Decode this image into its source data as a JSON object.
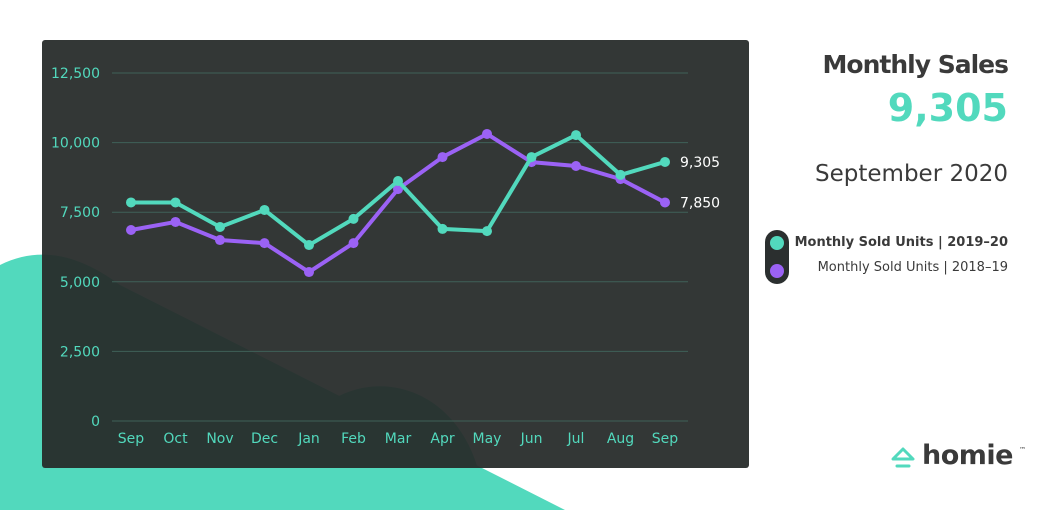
{
  "header": {
    "title": "Monthly Sales",
    "value": "9,305",
    "period": "September 2020"
  },
  "legend": [
    {
      "label": "Monthly Sold Units  |  2019–20",
      "color": "#52d9bd",
      "bold": true
    },
    {
      "label": "Monthly Sold Units  |  2018–19",
      "color": "#9b62f5",
      "bold": false
    }
  ],
  "logo": {
    "text": "homie",
    "tm": "™"
  },
  "colors": {
    "accent": "#52d9bd",
    "purple": "#9b62f5",
    "panel": "#2b2f2f"
  },
  "chart_data": {
    "type": "line",
    "categories": [
      "Sep",
      "Oct",
      "Nov",
      "Dec",
      "Jan",
      "Feb",
      "Mar",
      "Apr",
      "May",
      "Jun",
      "Jul",
      "Aug",
      "Sep"
    ],
    "ylim": [
      0,
      12500
    ],
    "yticks": [
      0,
      2500,
      5000,
      7500,
      10000,
      12500
    ],
    "ytick_labels": [
      "0",
      "2,500",
      "5,000",
      "7,500",
      "10,000",
      "12,500"
    ],
    "grid": true,
    "series": [
      {
        "name": "Monthly Sold Units | 2019–20",
        "color": "#52d9bd",
        "values": [
          7850,
          7850,
          6970,
          7580,
          6320,
          7260,
          8620,
          6900,
          6820,
          9480,
          10270,
          8840,
          9305
        ],
        "end_label": "9,305"
      },
      {
        "name": "Monthly Sold Units | 2018–19",
        "color": "#9b62f5",
        "values": [
          6860,
          7150,
          6500,
          6390,
          5350,
          6390,
          8330,
          9480,
          10310,
          9300,
          9160,
          8690,
          7850
        ],
        "end_label": "7,850"
      }
    ]
  }
}
